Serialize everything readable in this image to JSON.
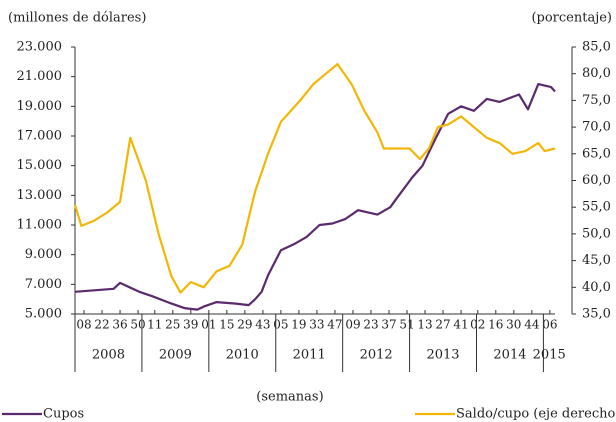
{
  "chart_data": {
    "type": "line",
    "ylabel": "(millones de dólares)",
    "y2label": "(porcentaje)",
    "xlabel": "(semanas)",
    "xlim": [
      0,
      373
    ],
    "xticks": [
      {
        "value": 7,
        "label": "08"
      },
      {
        "value": 21,
        "label": "22"
      },
      {
        "value": 35,
        "label": "36"
      },
      {
        "value": 49,
        "label": "50"
      },
      {
        "value": 62,
        "label": "11"
      },
      {
        "value": 76,
        "label": "25"
      },
      {
        "value": 90,
        "label": "39"
      },
      {
        "value": 104,
        "label": "01"
      },
      {
        "value": 118,
        "label": "15"
      },
      {
        "value": 132,
        "label": "29"
      },
      {
        "value": 146,
        "label": "43"
      },
      {
        "value": 160,
        "label": "05"
      },
      {
        "value": 174,
        "label": "19"
      },
      {
        "value": 188,
        "label": "33"
      },
      {
        "value": 202,
        "label": "47"
      },
      {
        "value": 216,
        "label": "09"
      },
      {
        "value": 230,
        "label": "23"
      },
      {
        "value": 244,
        "label": "37"
      },
      {
        "value": 258,
        "label": "51"
      },
      {
        "value": 272,
        "label": "13"
      },
      {
        "value": 286,
        "label": "27"
      },
      {
        "value": 300,
        "label": "41"
      },
      {
        "value": 313,
        "label": "02"
      },
      {
        "value": 327,
        "label": "16"
      },
      {
        "value": 341,
        "label": "30"
      },
      {
        "value": 355,
        "label": "44"
      },
      {
        "value": 369,
        "label": "06"
      }
    ],
    "years": [
      "2008",
      "2009",
      "2010",
      "2011",
      "2012",
      "2013",
      "2014",
      "2015"
    ],
    "ylim": [
      5000,
      23000
    ],
    "yticks": [
      {
        "value": 5000,
        "label": "5.000"
      },
      {
        "value": 7000,
        "label": "7.000"
      },
      {
        "value": 9000,
        "label": "9.000"
      },
      {
        "value": 11000,
        "label": "11.000"
      },
      {
        "value": 13000,
        "label": "13.000"
      },
      {
        "value": 15000,
        "label": "15.000"
      },
      {
        "value": 17000,
        "label": "17.000"
      },
      {
        "value": 19000,
        "label": "19.000"
      },
      {
        "value": 21000,
        "label": "21.000"
      },
      {
        "value": 23000,
        "label": "23.000"
      }
    ],
    "y2lim": [
      35,
      85
    ],
    "y2ticks": [
      {
        "value": 35,
        "label": "35,0"
      },
      {
        "value": 40,
        "label": "40,0"
      },
      {
        "value": 45,
        "label": "45,0"
      },
      {
        "value": 50,
        "label": "50,0"
      },
      {
        "value": 55,
        "label": "55,0"
      },
      {
        "value": 60,
        "label": "60,0"
      },
      {
        "value": 65,
        "label": "65,0"
      },
      {
        "value": 70,
        "label": "70,0"
      },
      {
        "value": 75,
        "label": "75,0"
      },
      {
        "value": 80,
        "label": "80,0"
      },
      {
        "value": 85,
        "label": "85,0"
      }
    ],
    "series": [
      {
        "name": "Cupos",
        "color": "#5b2a6e",
        "x": [
          0,
          15,
          30,
          35,
          50,
          60,
          75,
          85,
          95,
          100,
          110,
          125,
          135,
          140,
          145,
          150,
          160,
          170,
          180,
          190,
          200,
          210,
          220,
          235,
          245,
          250,
          262,
          270,
          280,
          290,
          300,
          310,
          320,
          330,
          345,
          352,
          360,
          370,
          373
        ],
        "values": [
          6500,
          6600,
          6700,
          7100,
          6500,
          6200,
          5700,
          5400,
          5300,
          5500,
          5800,
          5700,
          5600,
          6000,
          6500,
          7600,
          9300,
          9700,
          10200,
          11000,
          11100,
          11400,
          12000,
          11700,
          12200,
          12800,
          14200,
          15000,
          16800,
          18500,
          19000,
          18700,
          19500,
          19300,
          19800,
          18800,
          20500,
          20300,
          20000
        ]
      },
      {
        "name": "Saldo/cupo (eje derecho)",
        "color": "#f2b705",
        "axis": "y2",
        "x": [
          0,
          5,
          15,
          25,
          35,
          43,
          55,
          65,
          75,
          82,
          90,
          100,
          110,
          120,
          130,
          135,
          140,
          150,
          160,
          175,
          185,
          195,
          204,
          215,
          225,
          235,
          240,
          250,
          260,
          268,
          275,
          282,
          290,
          300,
          310,
          320,
          330,
          340,
          350,
          360,
          365,
          373
        ],
        "values": [
          55.4,
          51.5,
          52.5,
          54,
          56,
          68,
          60,
          50,
          42,
          39,
          41,
          40,
          43,
          44,
          48,
          53,
          58,
          65,
          71,
          75,
          78,
          80,
          81.8,
          78,
          73,
          69,
          66,
          66,
          66,
          64,
          66,
          70,
          70.5,
          72,
          70,
          68,
          67,
          65,
          65.5,
          67,
          65.5,
          66
        ]
      }
    ]
  }
}
